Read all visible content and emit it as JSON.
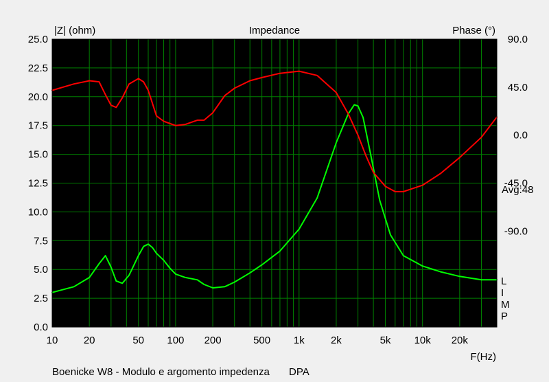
{
  "chart_data": {
    "type": "line",
    "title": "Impedance",
    "left_axis_label": "|Z| (ohm)",
    "right_axis_label": "Phase (°)",
    "xlabel": "F(Hz)",
    "x_scale": "log",
    "xlim": [
      10,
      40000
    ],
    "ylim": [
      0,
      25
    ],
    "y2lim": [
      -180,
      90
    ],
    "x_tick_labels": [
      "10",
      "20",
      "50",
      "100",
      "200",
      "500",
      "1k",
      "2k",
      "5k",
      "10k",
      "20k"
    ],
    "x_tick_values": [
      10,
      20,
      50,
      100,
      200,
      500,
      1000,
      2000,
      5000,
      10000,
      20000
    ],
    "y_tick_labels": [
      "0.0",
      "2.5",
      "5.0",
      "7.5",
      "10.0",
      "12.5",
      "15.0",
      "17.5",
      "20.0",
      "22.5",
      "25.0"
    ],
    "y_tick_values": [
      0,
      2.5,
      5,
      7.5,
      10,
      12.5,
      15,
      17.5,
      20,
      22.5,
      25
    ],
    "y2_tick_labels": [
      "90.0",
      "45.0",
      "0.0",
      "-45.0",
      "-90.0"
    ],
    "y2_tick_values": [
      90,
      45,
      0,
      -45,
      -90
    ],
    "avg_label": "Avg:48",
    "side_letters": [
      "L",
      "I",
      "M",
      "P"
    ],
    "grid": true,
    "colors": {
      "background": "#000000",
      "grid": "#008000",
      "impedance": "#00ff00",
      "phase": "#ff0000"
    },
    "series": [
      {
        "key": "impedance",
        "axis": "left",
        "x": [
          10,
          15,
          20,
          24,
          27,
          30,
          33,
          37,
          42,
          50,
          55,
          60,
          65,
          70,
          80,
          90,
          100,
          120,
          150,
          170,
          200,
          250,
          300,
          400,
          500,
          700,
          1000,
          1400,
          2000,
          2500,
          2800,
          3000,
          3300,
          3800,
          4500,
          5500,
          7000,
          10000,
          14000,
          20000,
          30000,
          40000
        ],
        "y": [
          3.0,
          3.5,
          4.3,
          5.5,
          6.2,
          5.2,
          4.0,
          3.8,
          4.5,
          6.2,
          7.0,
          7.2,
          6.9,
          6.4,
          5.8,
          5.1,
          4.6,
          4.3,
          4.1,
          3.7,
          3.4,
          3.5,
          3.9,
          4.7,
          5.4,
          6.6,
          8.5,
          11.2,
          16.0,
          18.5,
          19.3,
          19.2,
          18.2,
          15.0,
          11.0,
          8.0,
          6.2,
          5.3,
          4.8,
          4.4,
          4.1,
          4.1
        ]
      },
      {
        "key": "phase",
        "axis": "right",
        "x": [
          10,
          15,
          20,
          24,
          27,
          30,
          33,
          37,
          42,
          50,
          55,
          60,
          70,
          80,
          100,
          120,
          150,
          170,
          200,
          250,
          300,
          400,
          500,
          700,
          1000,
          1400,
          2000,
          2500,
          3000,
          3500,
          4000,
          5000,
          6000,
          7000,
          10000,
          14000,
          20000,
          30000,
          40000
        ],
        "y": [
          42,
          48,
          51,
          50,
          38,
          28,
          26,
          35,
          48,
          53,
          50,
          42,
          18,
          13,
          9,
          10,
          14,
          14,
          21,
          37,
          44,
          51,
          54,
          58,
          60,
          56,
          40,
          20,
          0,
          -20,
          -35,
          -48,
          -53,
          -53,
          -47,
          -36,
          -21,
          -2,
          17
        ]
      }
    ]
  },
  "footer": {
    "caption": "Boenicke W8 - Modulo e argomento impedenza",
    "tag": "DPA"
  }
}
